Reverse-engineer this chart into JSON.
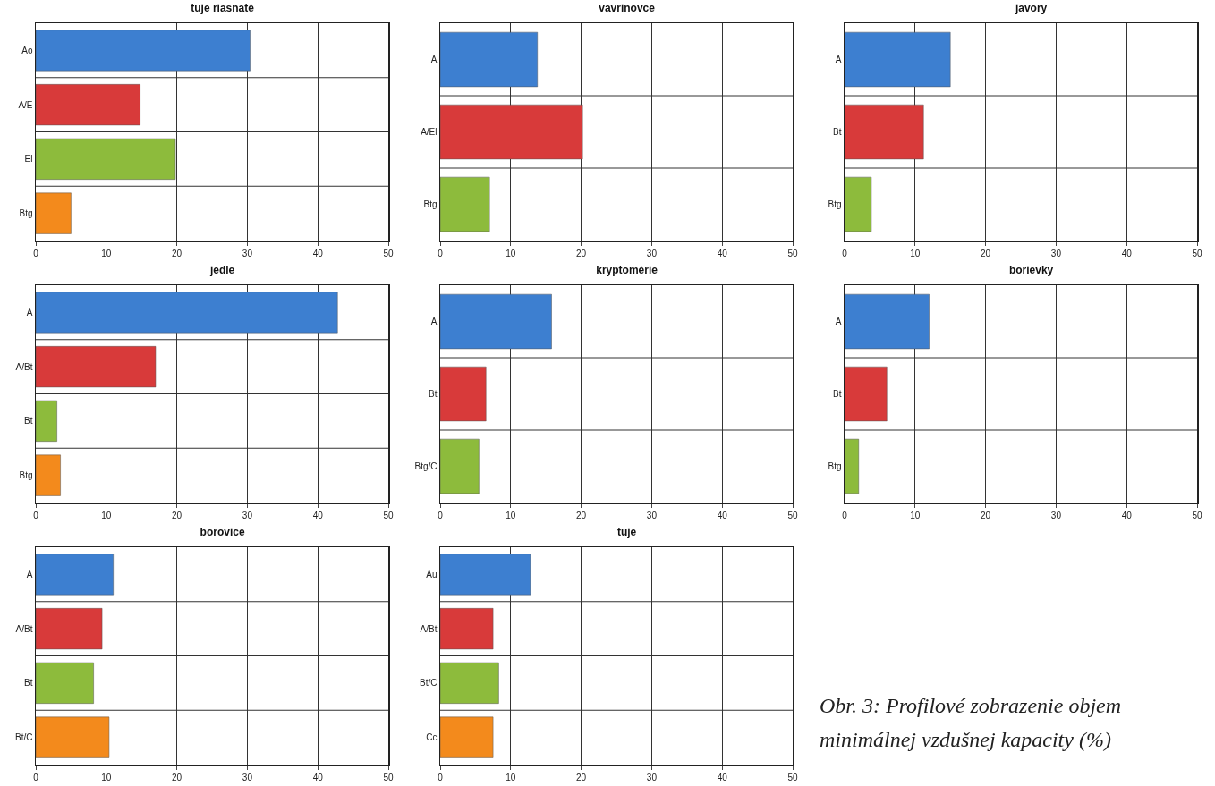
{
  "chart_data": [
    {
      "type": "bar",
      "orientation": "horizontal",
      "title": "tuje riasnaté",
      "categories": [
        "Ao",
        "A/E",
        "El",
        "Btg"
      ],
      "values": [
        30.4,
        14.8,
        19.8,
        5.0
      ],
      "colors": [
        "#3d7fd0",
        "#d83a3a",
        "#8dbb3c",
        "#f38a1c"
      ],
      "xlim": [
        0,
        50
      ],
      "xticks": [
        0,
        10,
        20,
        30,
        40,
        50
      ],
      "grid": true
    },
    {
      "type": "bar",
      "orientation": "horizontal",
      "title": "vavrinovce",
      "categories": [
        "A",
        "A/El",
        "Btg"
      ],
      "values": [
        13.8,
        20.2,
        7.0
      ],
      "colors": [
        "#3d7fd0",
        "#d83a3a",
        "#8dbb3c"
      ],
      "xlim": [
        0,
        50
      ],
      "xticks": [
        0,
        10,
        20,
        30,
        40,
        50
      ],
      "grid": true
    },
    {
      "type": "bar",
      "orientation": "horizontal",
      "title": "javory",
      "categories": [
        "A",
        "Bt",
        "Btg"
      ],
      "values": [
        15.0,
        11.2,
        3.8
      ],
      "colors": [
        "#3d7fd0",
        "#d83a3a",
        "#8dbb3c"
      ],
      "xlim": [
        0,
        50
      ],
      "xticks": [
        0,
        10,
        20,
        30,
        40,
        50
      ],
      "grid": true
    },
    {
      "type": "bar",
      "orientation": "horizontal",
      "title": "jedle",
      "categories": [
        "A",
        "A/Bt",
        "Bt",
        "Btg"
      ],
      "values": [
        42.8,
        17.0,
        3.0,
        3.5
      ],
      "colors": [
        "#3d7fd0",
        "#d83a3a",
        "#8dbb3c",
        "#f38a1c"
      ],
      "xlim": [
        0,
        50
      ],
      "xticks": [
        0,
        10,
        20,
        30,
        40,
        50
      ],
      "grid": true
    },
    {
      "type": "bar",
      "orientation": "horizontal",
      "title": "kryptomérie",
      "categories": [
        "A",
        "Bt",
        "Btg/C"
      ],
      "values": [
        15.8,
        6.5,
        5.5
      ],
      "colors": [
        "#3d7fd0",
        "#d83a3a",
        "#8dbb3c"
      ],
      "xlim": [
        0,
        50
      ],
      "xticks": [
        0,
        10,
        20,
        30,
        40,
        50
      ],
      "grid": true
    },
    {
      "type": "bar",
      "orientation": "horizontal",
      "title": "borievky",
      "categories": [
        "A",
        "Bt",
        "Btg"
      ],
      "values": [
        12.0,
        6.0,
        2.0
      ],
      "colors": [
        "#3d7fd0",
        "#d83a3a",
        "#8dbb3c"
      ],
      "xlim": [
        0,
        50
      ],
      "xticks": [
        0,
        10,
        20,
        30,
        40,
        50
      ],
      "grid": true
    },
    {
      "type": "bar",
      "orientation": "horizontal",
      "title": "borovice",
      "categories": [
        "A",
        "A/Bt",
        "Bt",
        "Bt/C"
      ],
      "values": [
        11.0,
        9.4,
        8.2,
        10.4
      ],
      "colors": [
        "#3d7fd0",
        "#d83a3a",
        "#8dbb3c",
        "#f38a1c"
      ],
      "xlim": [
        0,
        50
      ],
      "xticks": [
        0,
        10,
        20,
        30,
        40,
        50
      ],
      "grid": true
    },
    {
      "type": "bar",
      "orientation": "horizontal",
      "title": "tuje",
      "categories": [
        "Au",
        "A/Bt",
        "Bt/C",
        "Cc"
      ],
      "values": [
        12.8,
        7.5,
        8.3,
        7.5
      ],
      "colors": [
        "#3d7fd0",
        "#d83a3a",
        "#8dbb3c",
        "#f38a1c"
      ],
      "xlim": [
        0,
        50
      ],
      "xticks": [
        0,
        10,
        20,
        30,
        40,
        50
      ],
      "grid": true
    },
    {
      "type": "other",
      "annotations": [
        "Obr. 3: Profilové zobrazenie objem minimálnej vzdušnej kapacity (%)"
      ]
    }
  ]
}
